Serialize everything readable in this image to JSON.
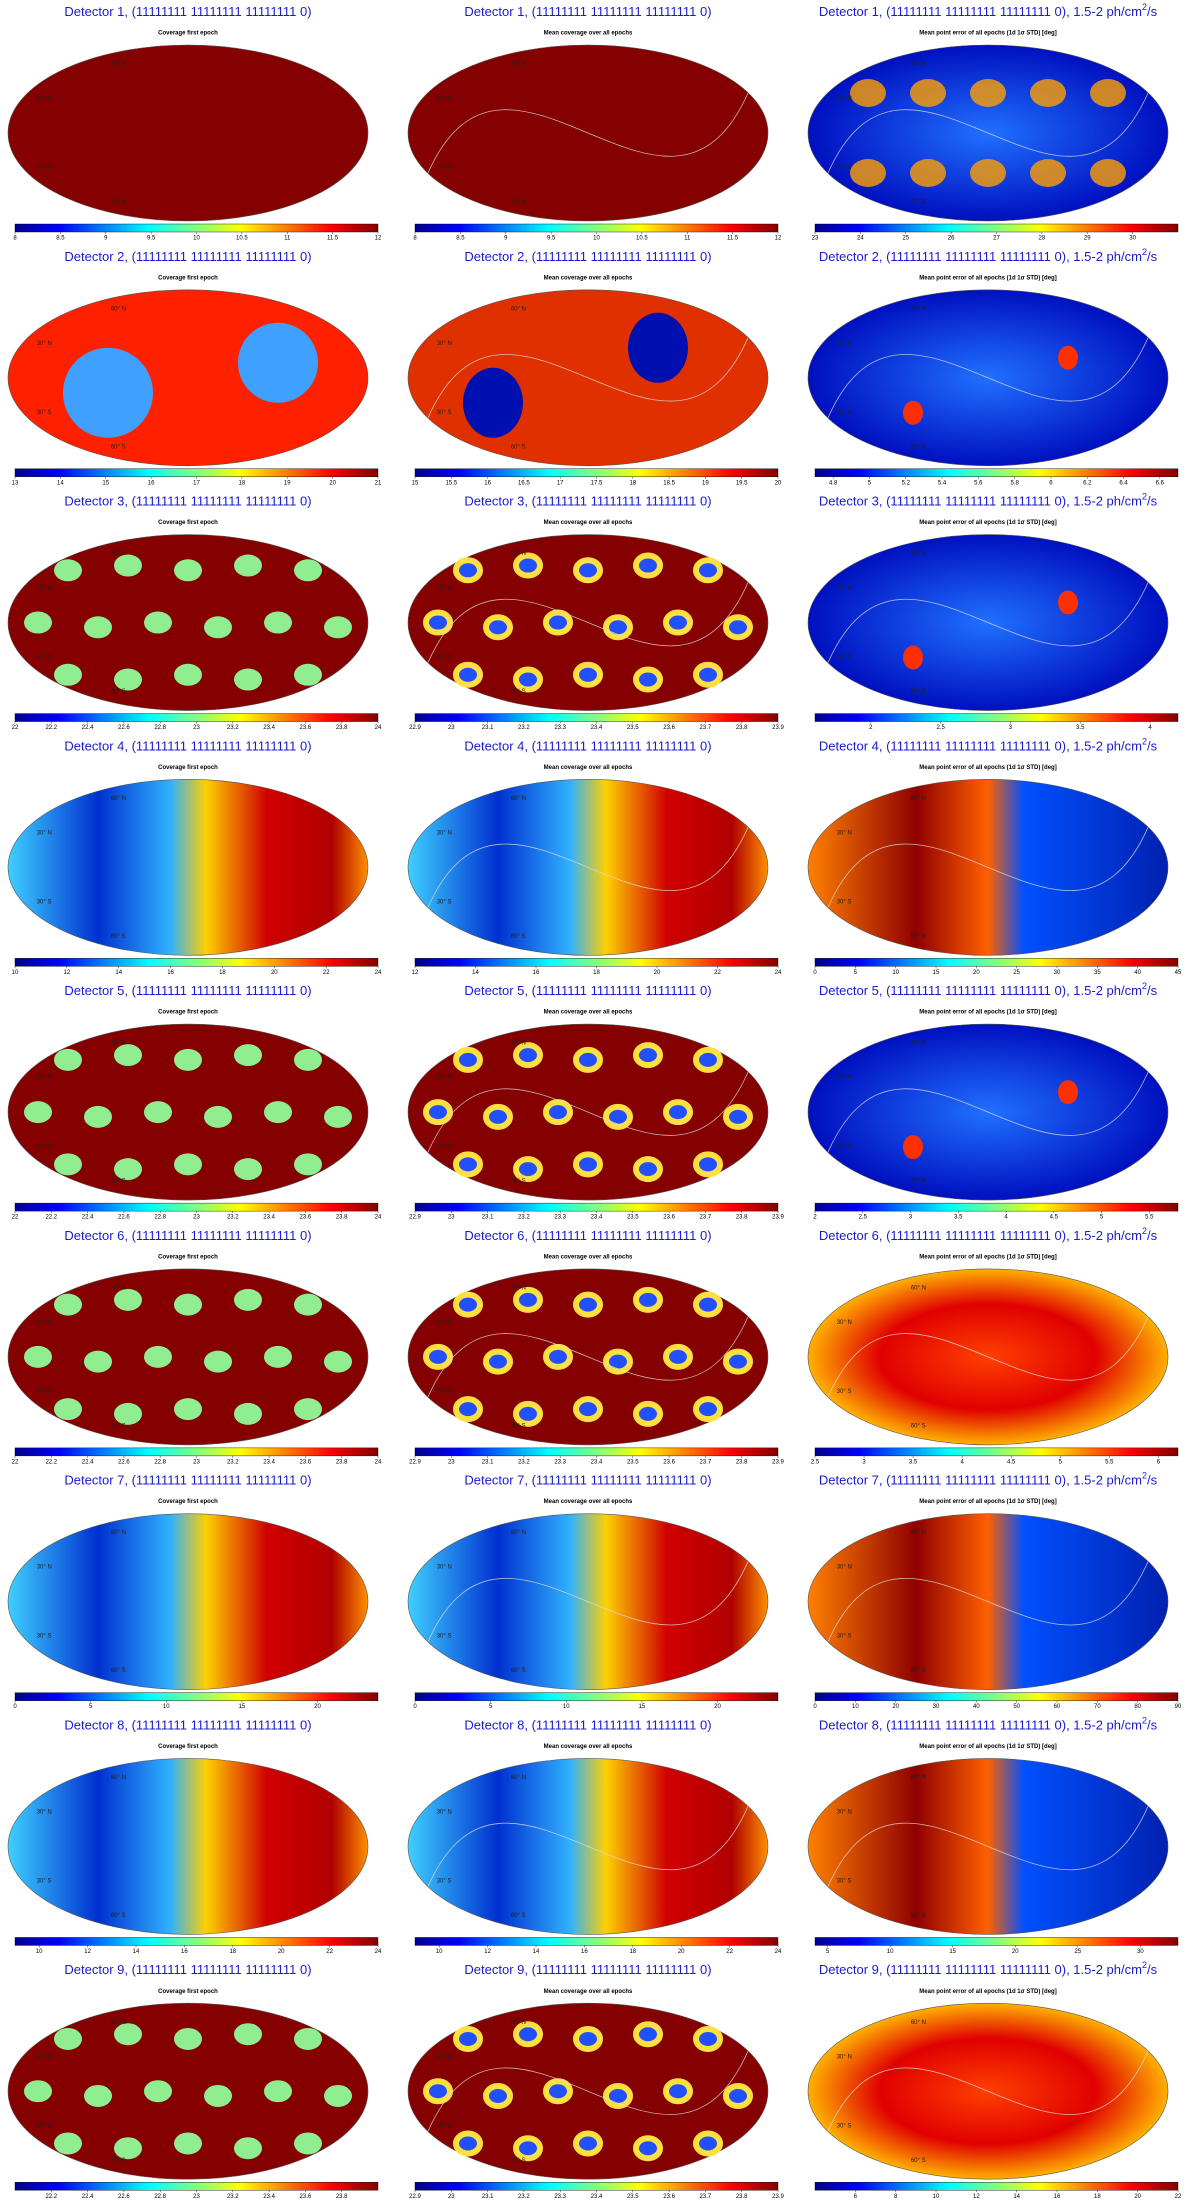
{
  "graticule_labels": [
    "60° N",
    "30° N",
    "30° S",
    "60° S"
  ],
  "panels": [
    {
      "title": "Detector 1, (11111111 11111111 11111111 0)",
      "subtitle": "Coverage first epoch",
      "colorbar": {
        "clim": [
          8,
          12
        ],
        "ticks": [
          8,
          8.5,
          9,
          9.5,
          10,
          10.5,
          11,
          11.5,
          12
        ]
      }
    },
    {
      "title": "Detector 1, (11111111 11111111 11111111 0)",
      "subtitle": "Mean coverage over all epochs",
      "colorbar": {
        "clim": [
          8,
          12
        ],
        "ticks": [
          8,
          8.5,
          9,
          9.5,
          10,
          10.5,
          11,
          11.5,
          12
        ]
      }
    },
    {
      "title": "Detector 1, (11111111 11111111 11111111 0), 1.5-2 ph/cm",
      "title_superscript": "2",
      "title_suffix": "/s",
      "subtitle": "Mean point error of all epochs (1d 1σ STD) [deg]",
      "colorbar": {
        "clim": [
          23,
          31
        ],
        "ticks": [
          23,
          24,
          25,
          26,
          27,
          28,
          29,
          30
        ]
      }
    },
    {
      "title": "Detector 2, (11111111 11111111 11111111 0)",
      "subtitle": "Coverage first epoch",
      "colorbar": {
        "clim": [
          13,
          21
        ],
        "ticks": [
          13,
          14,
          15,
          16,
          17,
          18,
          19,
          20,
          21
        ]
      }
    },
    {
      "title": "Detector 2, (11111111 11111111 11111111 0)",
      "subtitle": "Mean coverage over all epochs",
      "colorbar": {
        "clim": [
          15,
          20
        ],
        "ticks": [
          15,
          15.5,
          16,
          16.5,
          17,
          17.5,
          18,
          18.5,
          19,
          19.5,
          20
        ]
      }
    },
    {
      "title": "Detector 2, (11111111 11111111 11111111 0), 1.5-2 ph/cm",
      "title_superscript": "2",
      "title_suffix": "/s",
      "subtitle": "Mean point error of all epochs (1d 1σ STD) [deg]",
      "colorbar": {
        "clim": [
          4.7,
          6.7
        ],
        "ticks": [
          4.8,
          5,
          5.2,
          5.4,
          5.6,
          5.8,
          6,
          6.2,
          6.4,
          6.6
        ]
      }
    },
    {
      "title": "Detector 3, (11111111 11111111 11111111 0)",
      "subtitle": "Coverage first epoch",
      "colorbar": {
        "clim": [
          22,
          24
        ],
        "ticks": [
          22,
          22.2,
          22.4,
          22.6,
          22.8,
          23,
          23.2,
          23.4,
          23.6,
          23.8,
          24
        ]
      }
    },
    {
      "title": "Detector 3, (11111111 11111111 11111111 0)",
      "subtitle": "Mean coverage over all epochs",
      "colorbar": {
        "clim": [
          22.9,
          23.9
        ],
        "ticks": [
          22.9,
          23,
          23.1,
          23.2,
          23.3,
          23.4,
          23.5,
          23.6,
          23.7,
          23.8,
          23.9
        ]
      }
    },
    {
      "title": "Detector 3, (11111111 11111111 11111111 0), 1.5-2 ph/cm",
      "title_superscript": "2",
      "title_suffix": "/s",
      "subtitle": "Mean point error of all epochs (1d 1σ STD) [deg]",
      "colorbar": {
        "clim": [
          1.6,
          4.2
        ],
        "ticks": [
          2,
          2.5,
          3,
          3.5,
          4
        ]
      }
    },
    {
      "title": "Detector 4, (11111111 11111111 11111111 0)",
      "subtitle": "Coverage first epoch",
      "colorbar": {
        "clim": [
          10,
          24
        ],
        "ticks": [
          10,
          12,
          14,
          16,
          18,
          20,
          22,
          24
        ]
      }
    },
    {
      "title": "Detector 4, (11111111 11111111 11111111 0)",
      "subtitle": "Mean coverage over all epochs",
      "colorbar": {
        "clim": [
          12,
          24
        ],
        "ticks": [
          12,
          14,
          16,
          18,
          20,
          22,
          24
        ]
      }
    },
    {
      "title": "Detector 4, (11111111 11111111 11111111 0), 1.5-2 ph/cm",
      "title_superscript": "2",
      "title_suffix": "/s",
      "subtitle": "Mean point error of all epochs (1d 1σ STD) [deg]",
      "colorbar": {
        "clim": [
          0,
          45
        ],
        "ticks": [
          0,
          5,
          10,
          15,
          20,
          25,
          30,
          35,
          40,
          45
        ]
      }
    },
    {
      "title": "Detector 5, (11111111 11111111 11111111 0)",
      "subtitle": "Coverage first epoch",
      "colorbar": {
        "clim": [
          22,
          24
        ],
        "ticks": [
          22,
          22.2,
          22.4,
          22.6,
          22.8,
          23,
          23.2,
          23.4,
          23.6,
          23.8,
          24
        ]
      }
    },
    {
      "title": "Detector 5, (11111111 11111111 11111111 0)",
      "subtitle": "Mean coverage over all epochs",
      "colorbar": {
        "clim": [
          22.9,
          23.9
        ],
        "ticks": [
          22.9,
          23,
          23.1,
          23.2,
          23.3,
          23.4,
          23.5,
          23.6,
          23.7,
          23.8,
          23.9
        ]
      }
    },
    {
      "title": "Detector 5, (11111111 11111111 11111111 0), 1.5-2 ph/cm",
      "title_superscript": "2",
      "title_suffix": "/s",
      "subtitle": "Mean point error of all epochs (1d 1σ STD) [deg]",
      "colorbar": {
        "clim": [
          2,
          5.8
        ],
        "ticks": [
          2,
          2.5,
          3,
          3.5,
          4,
          4.5,
          5,
          5.5
        ]
      }
    },
    {
      "title": "Detector 6, (11111111 11111111 11111111 0)",
      "subtitle": "Coverage first epoch",
      "colorbar": {
        "clim": [
          22,
          24
        ],
        "ticks": [
          22,
          22.2,
          22.4,
          22.6,
          22.8,
          23,
          23.2,
          23.4,
          23.6,
          23.8,
          24
        ]
      }
    },
    {
      "title": "Detector 6, (11111111 11111111 11111111 0)",
      "subtitle": "Mean coverage over all epochs",
      "colorbar": {
        "clim": [
          22.9,
          23.9
        ],
        "ticks": [
          22.9,
          23,
          23.1,
          23.2,
          23.3,
          23.4,
          23.5,
          23.6,
          23.7,
          23.8,
          23.9
        ]
      }
    },
    {
      "title": "Detector 6, (11111111 11111111 11111111 0), 1.5-2 ph/cm",
      "title_superscript": "2",
      "title_suffix": "/s",
      "subtitle": "Mean point error of all epochs (1d 1σ STD) [deg]",
      "colorbar": {
        "clim": [
          2.5,
          6.2
        ],
        "ticks": [
          2.5,
          3,
          3.5,
          4,
          4.5,
          5,
          5.5,
          6
        ]
      }
    },
    {
      "title": "Detector 7, (11111111 11111111 11111111 0)",
      "subtitle": "Coverage first epoch",
      "colorbar": {
        "clim": [
          0,
          24
        ],
        "ticks": [
          0,
          5,
          10,
          15,
          20
        ]
      }
    },
    {
      "title": "Detector 7, (11111111 11111111 11111111 0)",
      "subtitle": "Mean coverage over all epochs",
      "colorbar": {
        "clim": [
          0,
          24
        ],
        "ticks": [
          0,
          5,
          10,
          15,
          20
        ]
      }
    },
    {
      "title": "Detector 7, (11111111 11111111 11111111 0), 1.5-2 ph/cm",
      "title_superscript": "2",
      "title_suffix": "/s",
      "subtitle": "Mean point error of all epochs (1d 1σ STD) [deg]",
      "colorbar": {
        "clim": [
          0,
          90
        ],
        "ticks": [
          0,
          10,
          20,
          30,
          40,
          50,
          60,
          70,
          80,
          90
        ]
      }
    },
    {
      "title": "Detector 8, (11111111 11111111 11111111 0)",
      "subtitle": "Coverage first epoch",
      "colorbar": {
        "clim": [
          9,
          24
        ],
        "ticks": [
          10,
          12,
          14,
          16,
          18,
          20,
          22,
          24
        ]
      }
    },
    {
      "title": "Detector 8, (11111111 11111111 11111111 0)",
      "subtitle": "Mean coverage over all epochs",
      "colorbar": {
        "clim": [
          9,
          24
        ],
        "ticks": [
          10,
          12,
          14,
          16,
          18,
          20,
          22,
          24
        ]
      }
    },
    {
      "title": "Detector 8, (11111111 11111111 11111111 0), 1.5-2 ph/cm",
      "title_superscript": "2",
      "title_suffix": "/s",
      "subtitle": "Mean point error of all epochs (1d 1σ STD) [deg]",
      "colorbar": {
        "clim": [
          4,
          33
        ],
        "ticks": [
          5,
          10,
          15,
          20,
          25,
          30
        ]
      }
    },
    {
      "title": "Detector 9, (11111111 11111111 11111111 0)",
      "subtitle": "Coverage first epoch",
      "colorbar": {
        "clim": [
          22,
          24
        ],
        "ticks": [
          22.2,
          22.4,
          22.6,
          22.8,
          23,
          23.2,
          23.4,
          23.6,
          23.8
        ]
      }
    },
    {
      "title": "Detector 9, (11111111 11111111 11111111 0)",
      "subtitle": "Mean coverage over all epochs",
      "colorbar": {
        "clim": [
          22.9,
          23.9
        ],
        "ticks": [
          22.9,
          23,
          23.1,
          23.2,
          23.3,
          23.4,
          23.5,
          23.6,
          23.7,
          23.8,
          23.9
        ]
      }
    },
    {
      "title": "Detector 9, (11111111 11111111 11111111 0), 1.5-2 ph/cm",
      "title_superscript": "2",
      "title_suffix": "/s",
      "subtitle": "Mean point error of all epochs (1d 1σ STD) [deg]",
      "colorbar": {
        "clim": [
          4,
          22
        ],
        "ticks": [
          6,
          8,
          10,
          12,
          14,
          16,
          18,
          20,
          22
        ]
      }
    }
  ]
}
